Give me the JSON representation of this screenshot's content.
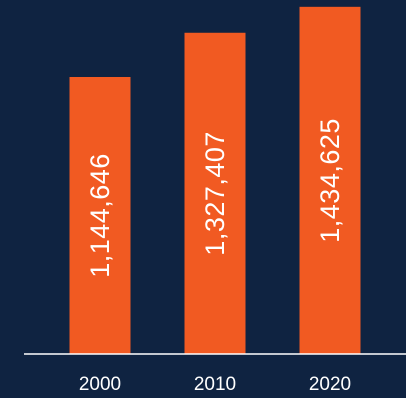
{
  "chart_data": {
    "type": "bar",
    "categories": [
      "2000",
      "2010",
      "2020"
    ],
    "values": [
      1144646,
      1327407,
      1434625
    ],
    "data_labels": [
      "1,144,646",
      "1,327,407",
      "1,434,625"
    ],
    "title": "",
    "xlabel": "",
    "ylabel": "",
    "ylim": [
      0,
      1500000
    ],
    "grid": false,
    "legend": "none"
  },
  "colors": {
    "background": "#0f2341",
    "bar": "#f15a22",
    "text": "#ffffff"
  }
}
